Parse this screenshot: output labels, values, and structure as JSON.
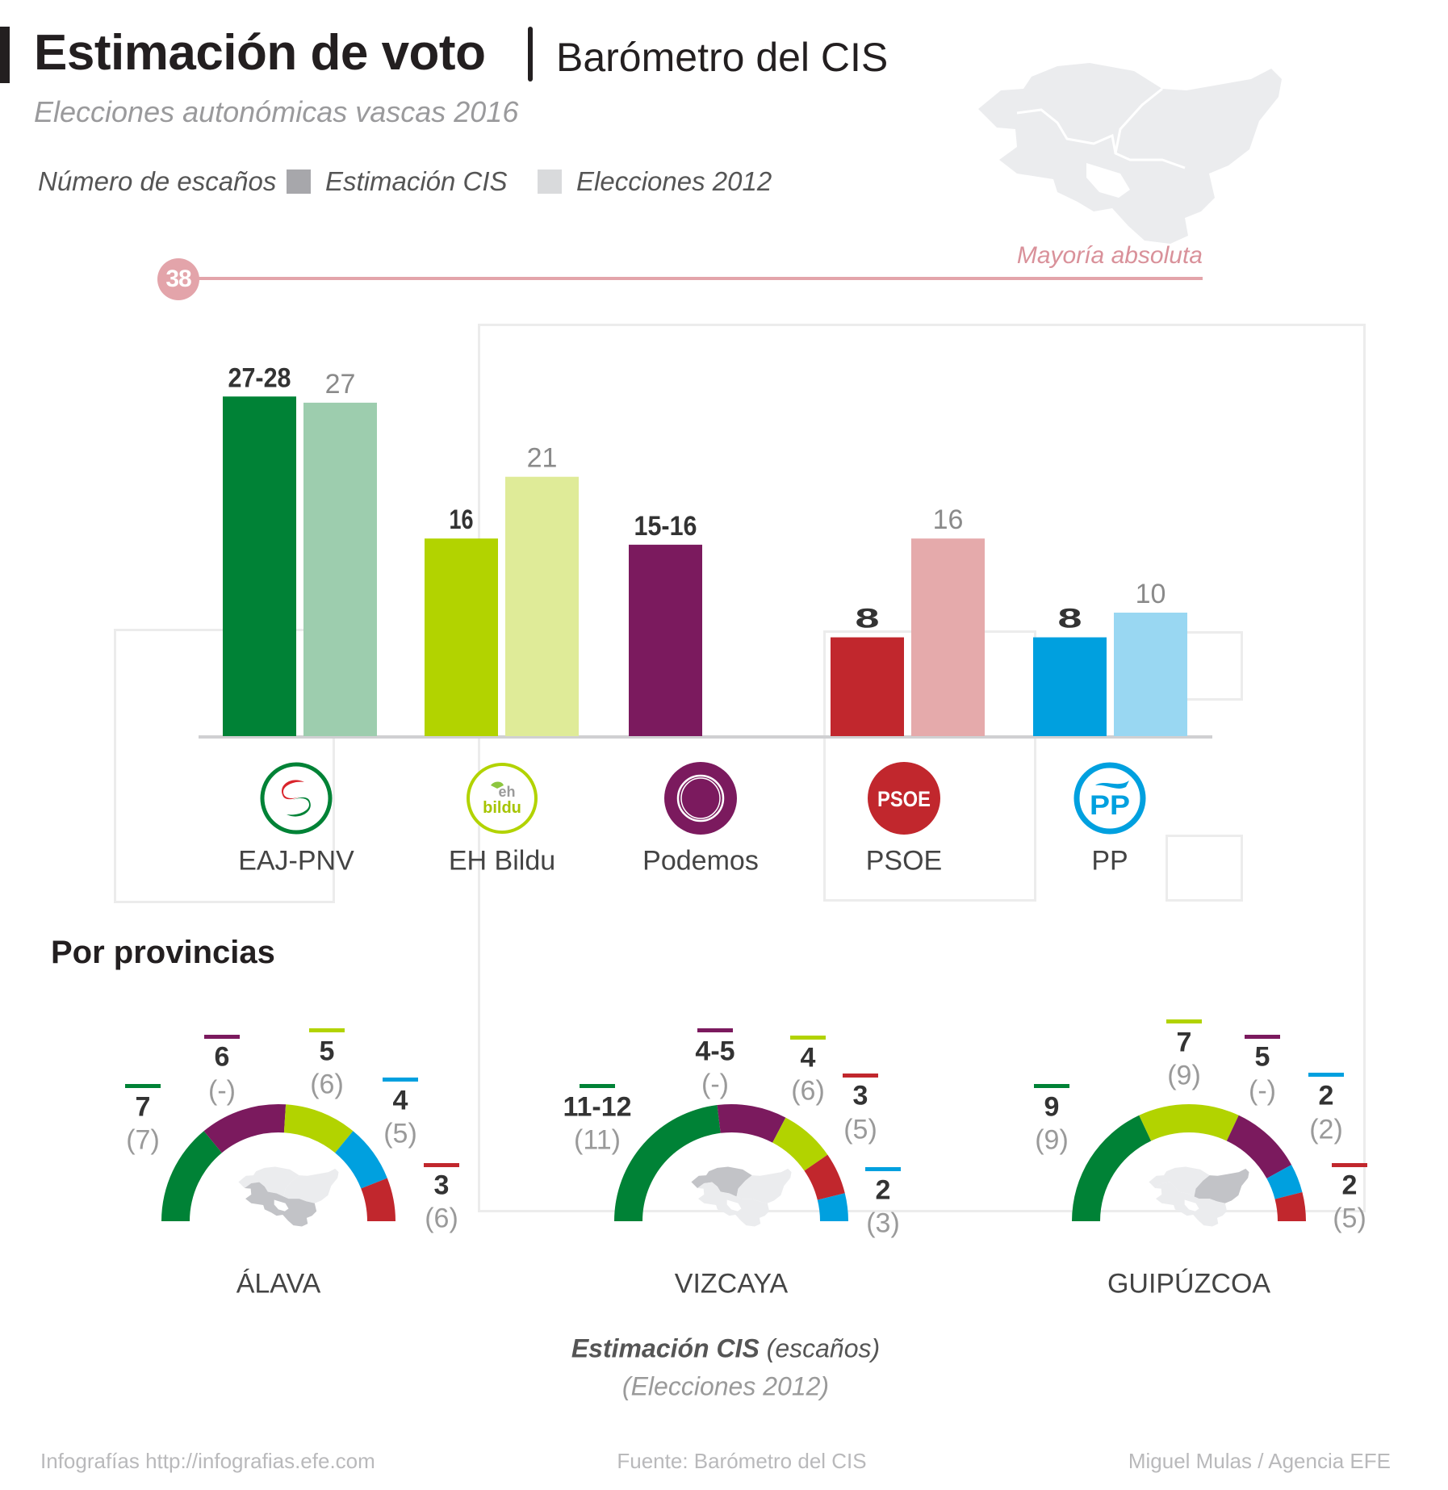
{
  "header": {
    "title": "Estimación de voto",
    "subtitle": "Barómetro del CIS",
    "subhead": "Elecciones autonómicas vascas 2016"
  },
  "legend": {
    "label": "Número de escaños",
    "items": [
      {
        "label": "Estimación CIS",
        "color": "#a7a7ab"
      },
      {
        "label": "Elecciones 2012",
        "color": "#d9dadc"
      }
    ]
  },
  "majority": {
    "value": "38",
    "label": "Mayoría absoluta",
    "color": "#e3a4aa"
  },
  "chart_data": [
    {
      "type": "bar",
      "title": "Estimación de voto — Número de escaños",
      "categories": [
        "EAJ-PNV",
        "EH Bildu",
        "Podemos",
        "PSOE",
        "PP"
      ],
      "series": [
        {
          "name": "Estimación CIS",
          "values": [
            27.5,
            16,
            15.5,
            8,
            8
          ],
          "labels": [
            "27-28",
            "16",
            "15-16",
            "8",
            "8"
          ],
          "colors": [
            "#008236",
            "#b2d300",
            "#7b1a5e",
            "#c1272d",
            "#00a0df"
          ]
        },
        {
          "name": "Elecciones 2012",
          "values": [
            27,
            21,
            null,
            16,
            10
          ],
          "labels": [
            "27",
            "21",
            "",
            "16",
            "10"
          ],
          "colors": [
            "#9dcdae",
            "#dfeb98",
            "#ffffff",
            "#e5aaab",
            "#99d7f2"
          ]
        }
      ],
      "reference_line": {
        "value": 38,
        "label": "Mayoría absoluta"
      },
      "ylim": [
        0,
        38
      ],
      "grid": false,
      "legend": "top-left"
    },
    {
      "type": "pie",
      "title": "Por provincias",
      "subtitle": "Estimación CIS (escaños) (Elecciones 2012)",
      "provinces": [
        {
          "name": "ÁLAVA",
          "highlight": "alava",
          "segments": [
            {
              "party": "EAJ-PNV",
              "est": "7",
              "est_value": 7,
              "prev": "(7)",
              "color": "#008236"
            },
            {
              "party": "Podemos",
              "est": "6",
              "est_value": 6,
              "prev": "(-)",
              "color": "#7b1a5e"
            },
            {
              "party": "EH Bildu",
              "est": "5",
              "est_value": 5,
              "prev": "(6)",
              "color": "#b2d300"
            },
            {
              "party": "PP",
              "est": "4",
              "est_value": 4,
              "prev": "(5)",
              "color": "#00a0df"
            },
            {
              "party": "PSOE",
              "est": "3",
              "est_value": 3,
              "prev": "(6)",
              "color": "#c1272d"
            }
          ]
        },
        {
          "name": "VIZCAYA",
          "highlight": "vizcaya",
          "segments": [
            {
              "party": "EAJ-PNV",
              "est": "11-12",
              "est_value": 12,
              "prev": "(11)",
              "color": "#008236"
            },
            {
              "party": "Podemos",
              "est": "4-5",
              "est_value": 5,
              "prev": "(-)",
              "color": "#7b1a5e"
            },
            {
              "party": "EH Bildu",
              "est": "4",
              "est_value": 4,
              "prev": "(6)",
              "color": "#b2d300"
            },
            {
              "party": "PSOE",
              "est": "3",
              "est_value": 3,
              "prev": "(5)",
              "color": "#c1272d"
            },
            {
              "party": "PP",
              "est": "2",
              "est_value": 2,
              "prev": "(3)",
              "color": "#00a0df"
            }
          ]
        },
        {
          "name": "GUIPÚZCOA",
          "highlight": "guipuzcoa",
          "segments": [
            {
              "party": "EAJ-PNV",
              "est": "9",
              "est_value": 9,
              "prev": "(9)",
              "color": "#008236"
            },
            {
              "party": "EH Bildu",
              "est": "7",
              "est_value": 7,
              "prev": "(9)",
              "color": "#b2d300"
            },
            {
              "party": "Podemos",
              "est": "5",
              "est_value": 5,
              "prev": "(-)",
              "color": "#7b1a5e"
            },
            {
              "party": "PP",
              "est": "2",
              "est_value": 2,
              "prev": "(2)",
              "color": "#00a0df"
            },
            {
              "party": "PSOE",
              "est": "2",
              "est_value": 2,
              "prev": "(5)",
              "color": "#c1272d"
            }
          ]
        }
      ]
    }
  ],
  "parties": [
    {
      "name": "EAJ-PNV",
      "logo": "pnv-logo-icon",
      "color": "#008236"
    },
    {
      "name": "EH Bildu",
      "logo": "bildu-logo-icon",
      "color": "#b2d300",
      "logo_text": [
        "eh",
        "bildu"
      ]
    },
    {
      "name": "Podemos",
      "logo": "podemos-logo-icon",
      "color": "#7b1a5e"
    },
    {
      "name": "PSOE",
      "logo": "psoe-logo-icon",
      "color": "#c1272d",
      "logo_text": "PSOE"
    },
    {
      "name": "PP",
      "logo": "pp-logo-icon",
      "color": "#00a0df",
      "logo_text": "PP"
    }
  ],
  "provinces_section": {
    "title": "Por provincias",
    "note_bold": "Estimación CIS",
    "note_rest": " (escaños)",
    "note2": "(Elecciones 2012)"
  },
  "footer": {
    "left": "Infografías http://infografias.efe.com",
    "center": "Fuente: Barómetro del CIS",
    "right": "Miguel Mulas / Agencia EFE"
  }
}
